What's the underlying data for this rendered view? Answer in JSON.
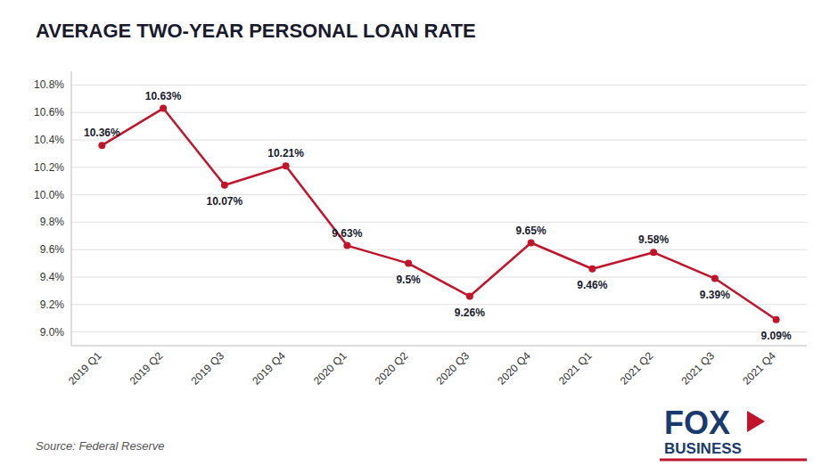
{
  "chart_data": {
    "type": "line",
    "title": "AVERAGE TWO-YEAR PERSONAL LOAN RATE",
    "annotations": [
      "Source: Federal Reserve",
      "FOX",
      "BUSINESS"
    ],
    "categories": [
      "2019 Q1",
      "2019 Q2",
      "2019 Q3",
      "2019 Q4",
      "2020 Q1",
      "2020 Q2",
      "2020 Q3",
      "2020 Q4",
      "2021 Q1",
      "2021 Q2",
      "2021 Q3",
      "2021 Q4"
    ],
    "values": [
      10.36,
      10.63,
      10.07,
      10.21,
      9.63,
      9.5,
      9.26,
      9.65,
      9.46,
      9.58,
      9.39,
      9.09
    ],
    "value_labels": [
      "10.36%",
      "10.63%",
      "10.07%",
      "10.21%",
      "9.63%",
      "9.5%",
      "9.26%",
      "9.65%",
      "9.46%",
      "9.58%",
      "9.39%",
      "9.09%"
    ],
    "color": "#c0152a",
    "ylim": [
      8.9,
      10.9
    ],
    "yticks": [
      {
        "value": 9.0,
        "label": "9.0%"
      },
      {
        "value": 9.2,
        "label": "9.2%"
      },
      {
        "value": 9.4,
        "label": "9.4%"
      },
      {
        "value": 9.6,
        "label": "9.6%"
      },
      {
        "value": 9.8,
        "label": "9.8%"
      },
      {
        "value": 10.0,
        "label": "10.0%"
      },
      {
        "value": 10.2,
        "label": "10.2%"
      },
      {
        "value": 10.4,
        "label": "10.4%"
      },
      {
        "value": 10.6,
        "label": "10.6%"
      },
      {
        "value": 10.8,
        "label": "10.8%"
      }
    ],
    "grid": true,
    "data_labels": true
  }
}
